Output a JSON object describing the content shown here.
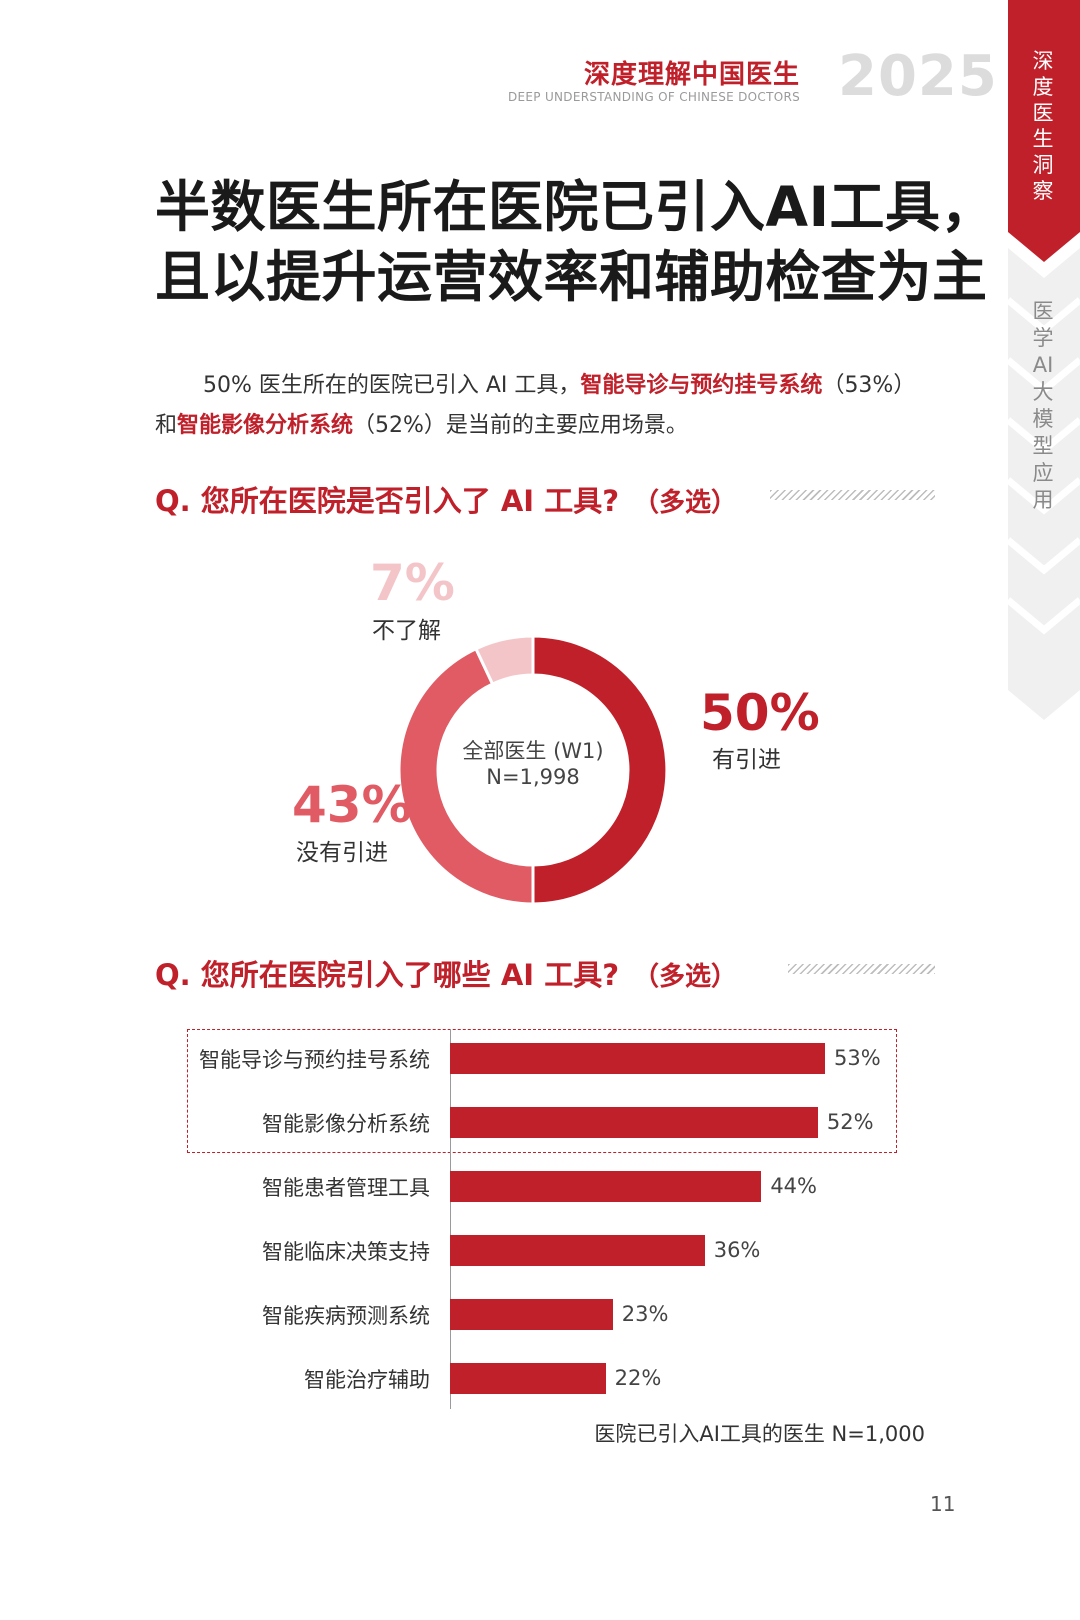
{
  "header": {
    "brand_cn": "深度理解中国医生",
    "brand_en": "DEEP UNDERSTANDING OF CHINESE DOCTORS",
    "year": "2025"
  },
  "side_tabs": {
    "active": "深度医生洞察",
    "inactive": "医学AI大模型应用",
    "accent_color": "#c0202a"
  },
  "title": {
    "line1": "半数医生所在医院已引入AI工具，",
    "line2": "且以提升运营效率和辅助检查为主"
  },
  "intro": {
    "p1_a": "50% 医生所在的医院已引入 AI 工具，",
    "p1_hl1": "智能导诊与预约挂号系统",
    "p1_b": "（53%）",
    "p2_a": "和",
    "p2_hl2": "智能影像分析系统",
    "p2_b": "（52%）是当前的主要应用场景。"
  },
  "question1": {
    "text": "Q. 您所在医院是否引入了 AI 工具?",
    "sub": "（多选）"
  },
  "question2": {
    "text": "Q. 您所在医院引入了哪些 AI 工具?",
    "sub": "（多选）"
  },
  "chart_data": [
    {
      "type": "pie",
      "center_label": "全部医生 (W1)",
      "center_n": "N=1,998",
      "slices": [
        {
          "label": "有引进",
          "value": 50,
          "display": "50%",
          "color": "#c0202a"
        },
        {
          "label": "没有引进",
          "value": 43,
          "display": "43%",
          "color": "#e05b64"
        },
        {
          "label": "不了解",
          "value": 7,
          "display": "7%",
          "color": "#f4c5c8"
        }
      ]
    },
    {
      "type": "bar",
      "orientation": "horizontal",
      "categories": [
        "智能导诊与预约挂号系统",
        "智能影像分析系统",
        "智能患者管理工具",
        "智能临床决策支持",
        "智能疾病预测系统",
        "智能治疗辅助"
      ],
      "values": [
        53,
        52,
        44,
        36,
        23,
        22
      ],
      "value_labels": [
        "53%",
        "52%",
        "44%",
        "36%",
        "23%",
        "22%"
      ],
      "highlighted": [
        "智能导诊与预约挂号系统",
        "智能影像分析系统"
      ],
      "color": "#c0202a",
      "note": "医院已引入AI工具的医生 N=1,000"
    }
  ],
  "page_number": "11"
}
